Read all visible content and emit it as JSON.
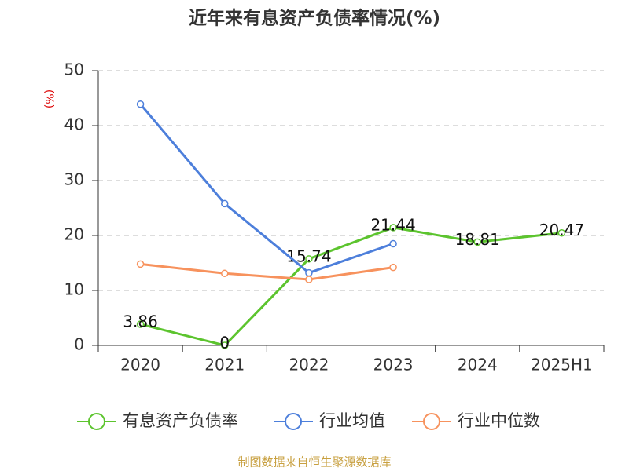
{
  "chart_data": {
    "type": "line",
    "title": "近年来有息资产负债率情况(%)",
    "y_label": "(%)",
    "source": "制图数据来自恒生聚源数据库",
    "categories": [
      "2020",
      "2021",
      "2022",
      "2023",
      "2024",
      "2025H1"
    ],
    "series": [
      {
        "name": "有息资产负债率",
        "color": "#5cc42e",
        "values": [
          3.86,
          0,
          15.74,
          21.44,
          18.81,
          20.47
        ],
        "data_labels": true
      },
      {
        "name": "行业均值",
        "color": "#4d7fdb",
        "values": [
          43.9,
          25.8,
          13.2,
          18.5,
          null,
          null
        ]
      },
      {
        "name": "行业中位数",
        "color": "#f7925d",
        "values": [
          14.8,
          13.1,
          12.0,
          14.2,
          null,
          null
        ]
      }
    ],
    "ylim": [
      0,
      50
    ],
    "yticks": [
      0,
      10,
      20,
      30,
      40,
      50
    ],
    "grid": true
  }
}
